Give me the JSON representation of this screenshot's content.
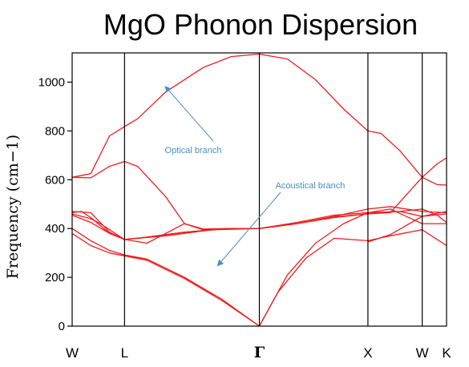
{
  "chart_data": {
    "type": "line",
    "title": "MgO Phonon Dispersion",
    "ylabel": "Frequency (cm−1)",
    "xlabel": "",
    "ylim": [
      0,
      1120
    ],
    "yticks": [
      0,
      200,
      400,
      600,
      800,
      1000
    ],
    "high_symmetry_points": [
      {
        "label": "W",
        "x": 0
      },
      {
        "label": "L",
        "x": 0.28
      },
      {
        "label": "Γ",
        "x": 1.0
      },
      {
        "label": "X",
        "x": 1.58
      },
      {
        "label": "W",
        "x": 1.87
      },
      {
        "label": "K",
        "x": 2.0
      }
    ],
    "series": [
      {
        "values": [
          [
            0,
            610
          ],
          [
            0.1,
            625
          ],
          [
            0.2,
            780
          ],
          [
            0.28,
            818
          ],
          [
            0.35,
            850
          ],
          [
            0.5,
            960
          ],
          [
            0.7,
            1060
          ],
          [
            0.85,
            1105
          ],
          [
            1.0,
            1115
          ],
          [
            1.15,
            1095
          ],
          [
            1.3,
            1010
          ],
          [
            1.45,
            890
          ],
          [
            1.58,
            800
          ],
          [
            1.65,
            790
          ],
          [
            1.75,
            720
          ],
          [
            1.87,
            610
          ],
          [
            1.95,
            665
          ],
          [
            2.0,
            690
          ]
        ]
      },
      {
        "values": [
          [
            0,
            610
          ],
          [
            0.1,
            608
          ],
          [
            0.2,
            655
          ],
          [
            0.28,
            675
          ],
          [
            0.35,
            655
          ],
          [
            0.5,
            530
          ],
          [
            0.6,
            420
          ],
          [
            0.7,
            395
          ],
          [
            0.85,
            400
          ],
          [
            1.0,
            400
          ],
          [
            1.2,
            420
          ],
          [
            1.4,
            448
          ],
          [
            1.58,
            460
          ],
          [
            1.7,
            465
          ],
          [
            1.87,
            610
          ],
          [
            1.95,
            580
          ],
          [
            2.0,
            578
          ]
        ]
      },
      {
        "values": [
          [
            0,
            465
          ],
          [
            0.05,
            470
          ],
          [
            0.1,
            445
          ],
          [
            0.2,
            380
          ],
          [
            0.28,
            355
          ],
          [
            0.4,
            365
          ],
          [
            0.6,
            385
          ],
          [
            0.8,
            398
          ],
          [
            1.0,
            400
          ],
          [
            1.2,
            420
          ],
          [
            1.4,
            445
          ],
          [
            1.58,
            460
          ],
          [
            1.75,
            470
          ],
          [
            1.87,
            480
          ],
          [
            1.95,
            455
          ],
          [
            2.0,
            425
          ]
        ]
      },
      {
        "values": [
          [
            0,
            455
          ],
          [
            0.1,
            425
          ],
          [
            0.2,
            380
          ],
          [
            0.28,
            355
          ],
          [
            0.5,
            370
          ],
          [
            0.75,
            395
          ],
          [
            1.0,
            400
          ],
          [
            1.2,
            420
          ],
          [
            1.4,
            450
          ],
          [
            1.58,
            480
          ],
          [
            1.7,
            490
          ],
          [
            1.87,
            470
          ],
          [
            2.0,
            465
          ]
        ]
      },
      {
        "values": [
          [
            0,
            470
          ],
          [
            0.1,
            465
          ],
          [
            0.2,
            385
          ],
          [
            0.28,
            355
          ],
          [
            0.4,
            365
          ],
          [
            0.6,
            385
          ],
          [
            0.8,
            398
          ],
          [
            1.0,
            400
          ],
          [
            1.2,
            425
          ],
          [
            1.4,
            455
          ],
          [
            1.58,
            465
          ],
          [
            1.75,
            470
          ],
          [
            1.87,
            450
          ],
          [
            2.0,
            470
          ]
        ]
      },
      {
        "values": [
          [
            0,
            460
          ],
          [
            0.1,
            440
          ],
          [
            0.15,
            420
          ],
          [
            0.2,
            395
          ],
          [
            0.28,
            355
          ],
          [
            0.4,
            340
          ],
          [
            0.6,
            420
          ],
          [
            0.7,
            398
          ],
          [
            0.85,
            400
          ],
          [
            1.0,
            400
          ]
        ]
      },
      {
        "values": [
          [
            0,
            400
          ],
          [
            0.1,
            350
          ],
          [
            0.2,
            310
          ],
          [
            0.28,
            292
          ],
          [
            0.4,
            275
          ],
          [
            0.6,
            200
          ],
          [
            0.8,
            110
          ],
          [
            1.0,
            0
          ]
        ]
      },
      {
        "values": [
          [
            0,
            380
          ],
          [
            0.1,
            330
          ],
          [
            0.2,
            300
          ],
          [
            0.28,
            288
          ],
          [
            0.4,
            270
          ],
          [
            0.6,
            195
          ],
          [
            0.8,
            105
          ],
          [
            1.0,
            0
          ]
        ]
      },
      {
        "values": [
          [
            1.0,
            0
          ],
          [
            1.1,
            140
          ],
          [
            1.25,
            280
          ],
          [
            1.4,
            360
          ],
          [
            1.58,
            350
          ],
          [
            1.7,
            370
          ],
          [
            1.87,
            395
          ],
          [
            2.0,
            330
          ]
        ]
      },
      {
        "values": [
          [
            1.0,
            0
          ],
          [
            1.15,
            210
          ],
          [
            1.3,
            340
          ],
          [
            1.45,
            420
          ],
          [
            1.58,
            465
          ],
          [
            1.7,
            480
          ],
          [
            1.87,
            420
          ],
          [
            2.0,
            420
          ]
        ]
      },
      {
        "values": [
          [
            1.58,
            345
          ],
          [
            1.7,
            375
          ],
          [
            1.87,
            450
          ],
          [
            2.0,
            460
          ]
        ]
      }
    ],
    "annotations": [
      {
        "text": "Optical branch",
        "arrow_to": [
          0.5,
          980
        ]
      },
      {
        "text": "Acoustical branch",
        "arrow_to": [
          0.78,
          250
        ]
      }
    ],
    "colors": {
      "line": "#ee1c1c",
      "axes": "#000000",
      "annotation": "#4a8ec2"
    }
  }
}
